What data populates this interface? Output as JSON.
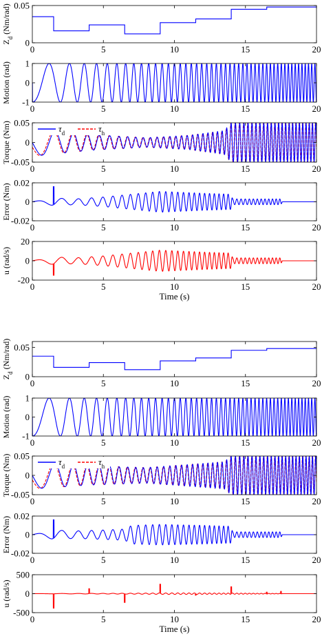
{
  "colors": {
    "blue": "#0000ff",
    "red": "#ff0000",
    "axis": "#000000"
  },
  "chart_data": [
    {
      "type": "line",
      "group": 1,
      "panel": "Zd",
      "ylabel": "Z",
      "ylabel_sub": "d",
      "ylabel_tail": " (Nm/rad)",
      "xlim": [
        0,
        20
      ],
      "ylim": [
        0,
        0.05
      ],
      "xticks": [
        "0",
        "5",
        "10",
        "15",
        "20"
      ],
      "yticks": [
        {
          "v": 0,
          "t": "0"
        },
        {
          "v": 0.05,
          "t": "0.05"
        }
      ],
      "series": [
        {
          "color": "blue",
          "kind": "step",
          "x": [
            0,
            1.5,
            4,
            6.5,
            9,
            11.5,
            14,
            16.5,
            20
          ],
          "y": [
            0.035,
            0.016,
            0.024,
            0.012,
            0.027,
            0.032,
            0.045,
            0.048,
            0.048
          ]
        }
      ]
    },
    {
      "type": "line",
      "group": 1,
      "panel": "Motion",
      "ylabel": "Motion (rad)",
      "xlim": [
        0,
        20
      ],
      "ylim": [
        -1,
        1
      ],
      "xticks": [
        "0",
        "5",
        "10",
        "15",
        "20"
      ],
      "yticks": [
        {
          "v": 1,
          "t": "1"
        },
        {
          "v": 0,
          "t": "0"
        },
        {
          "v": -1,
          "t": "-1"
        }
      ],
      "series": [
        {
          "color": "blue",
          "kind": "chirp",
          "amplitude": 1,
          "f0_hz": 0.3,
          "f1_hz": 4.5
        }
      ]
    },
    {
      "type": "line",
      "group": 1,
      "panel": "Torque",
      "ylabel": "Torque (Nm)",
      "xlim": [
        0,
        20
      ],
      "ylim": [
        -0.05,
        0.05
      ],
      "xticks": [
        "0",
        "5",
        "10",
        "15",
        "20"
      ],
      "yticks": [
        {
          "v": 0.05,
          "t": "0.05"
        },
        {
          "v": 0,
          "t": "0"
        },
        {
          "v": -0.05,
          "t": "-0.05"
        }
      ],
      "legend": {
        "placement": "top-left",
        "entries": [
          {
            "sym": "τ",
            "sub": "d",
            "color": "blue",
            "dash": false
          },
          {
            "sym": "τ",
            "sub": "h",
            "color": "red",
            "dash": true
          }
        ]
      },
      "series": [
        {
          "color": "red",
          "kind": "torque",
          "dashed": true,
          "envelope": [
            [
              0,
              0.035
            ],
            [
              4,
              0.02
            ],
            [
              8,
              0.012
            ],
            [
              11,
              0.018
            ],
            [
              13.5,
              0.03
            ],
            [
              14,
              0.05
            ],
            [
              20,
              0.05
            ]
          ]
        },
        {
          "color": "blue",
          "kind": "torque",
          "dashed": false,
          "envelope": [
            [
              0,
              0.035
            ],
            [
              4,
              0.02
            ],
            [
              8,
              0.012
            ],
            [
              11,
              0.018
            ],
            [
              13.5,
              0.03
            ],
            [
              14,
              0.05
            ],
            [
              20,
              0.05
            ]
          ]
        }
      ]
    },
    {
      "type": "line",
      "group": 1,
      "panel": "Error",
      "ylabel": "Error (Nm)",
      "xlim": [
        0,
        20
      ],
      "ylim": [
        -0.02,
        0.02
      ],
      "xticks": [
        "0",
        "5",
        "10",
        "15",
        "20"
      ],
      "yticks": [
        {
          "v": 0.02,
          "t": "0.02"
        },
        {
          "v": 0,
          "t": "0"
        },
        {
          "v": -0.02,
          "t": "-0.02"
        }
      ],
      "series": [
        {
          "color": "blue",
          "kind": "error",
          "spike": 0.016,
          "spike_x": 1.5,
          "envelope": [
            [
              0,
              0
            ],
            [
              1.5,
              0.004
            ],
            [
              3,
              0.003
            ],
            [
              5,
              0.005
            ],
            [
              7,
              0.008
            ],
            [
              9,
              0.011
            ],
            [
              12,
              0.009
            ],
            [
              14,
              0.008
            ],
            [
              14.1,
              0.003
            ],
            [
              17.5,
              0.003
            ],
            [
              17.6,
              0
            ],
            [
              20,
              0
            ]
          ]
        }
      ]
    },
    {
      "type": "line",
      "group": 1,
      "panel": "u",
      "ylabel": "u (rad/s)",
      "xlabel": "Time (s)",
      "xlim": [
        0,
        20
      ],
      "ylim": [
        -20,
        20
      ],
      "xticks": [
        "0",
        "5",
        "10",
        "15",
        "20"
      ],
      "yticks": [
        {
          "v": 20,
          "t": "20"
        },
        {
          "v": 0,
          "t": "0"
        },
        {
          "v": -20,
          "t": "-20"
        }
      ],
      "series": [
        {
          "color": "red",
          "kind": "error",
          "spike": -15,
          "spike_x": 1.5,
          "envelope": [
            [
              0,
              0
            ],
            [
              1.5,
              4
            ],
            [
              3,
              3
            ],
            [
              5,
              5
            ],
            [
              7,
              8
            ],
            [
              9,
              11
            ],
            [
              12,
              9
            ],
            [
              13.9,
              8
            ],
            [
              14,
              8
            ],
            [
              14.1,
              3
            ],
            [
              17.5,
              3
            ],
            [
              17.6,
              0
            ],
            [
              20,
              0
            ]
          ]
        }
      ]
    },
    {
      "type": "line",
      "group": 2,
      "panel": "Zd",
      "ylabel": "Z",
      "ylabel_sub": "d",
      "ylabel_tail": " (Nm/rad)",
      "xlim": [
        0,
        20
      ],
      "ylim": [
        0,
        0.06
      ],
      "xticks": [
        "0",
        "5",
        "10",
        "15",
        "20"
      ],
      "yticks": [
        {
          "v": 0,
          "t": "0"
        },
        {
          "v": 0.05,
          "t": "0.05"
        }
      ],
      "series": [
        {
          "color": "blue",
          "kind": "step",
          "x": [
            0,
            1.5,
            4,
            6.5,
            9,
            11.5,
            14,
            16.5,
            20
          ],
          "y": [
            0.035,
            0.016,
            0.024,
            0.012,
            0.027,
            0.032,
            0.045,
            0.048,
            0.048
          ]
        }
      ]
    },
    {
      "type": "line",
      "group": 2,
      "panel": "Motion",
      "ylabel": "Motion (rad)",
      "xlim": [
        0,
        20
      ],
      "ylim": [
        -1,
        1
      ],
      "xticks": [
        "0",
        "5",
        "10",
        "15",
        "20"
      ],
      "yticks": [
        {
          "v": 1,
          "t": "1"
        },
        {
          "v": 0,
          "t": "0"
        },
        {
          "v": -1,
          "t": "-1"
        }
      ],
      "series": [
        {
          "color": "blue",
          "kind": "chirp",
          "amplitude": 1,
          "f0_hz": 0.3,
          "f1_hz": 4.5
        }
      ]
    },
    {
      "type": "line",
      "group": 2,
      "panel": "Torque",
      "ylabel": "Torque (Nm)",
      "xlim": [
        0,
        20
      ],
      "ylim": [
        -0.05,
        0.05
      ],
      "xticks": [
        "0",
        "5",
        "10",
        "15",
        "20"
      ],
      "yticks": [
        {
          "v": 0.05,
          "t": "0.05"
        },
        {
          "v": 0,
          "t": "0"
        },
        {
          "v": -0.05,
          "t": "-0.05"
        }
      ],
      "legend": {
        "placement": "top-left",
        "entries": [
          {
            "sym": "τ",
            "sub": "d",
            "color": "blue",
            "dash": false
          },
          {
            "sym": "τ",
            "sub": "h",
            "color": "red",
            "dash": true
          }
        ]
      },
      "series": [
        {
          "color": "red",
          "kind": "torque",
          "dashed": true,
          "envelope": [
            [
              0,
              0.035
            ],
            [
              4,
              0.025
            ],
            [
              8,
              0.02
            ],
            [
              11,
              0.028
            ],
            [
              13.5,
              0.035
            ],
            [
              14,
              0.05
            ],
            [
              20,
              0.05
            ]
          ]
        },
        {
          "color": "blue",
          "kind": "torque",
          "dashed": false,
          "envelope": [
            [
              0,
              0.035
            ],
            [
              4,
              0.025
            ],
            [
              8,
              0.02
            ],
            [
              11,
              0.028
            ],
            [
              13.5,
              0.035
            ],
            [
              14,
              0.05
            ],
            [
              20,
              0.05
            ]
          ]
        }
      ]
    },
    {
      "type": "line",
      "group": 2,
      "panel": "Error",
      "ylabel": "Error (Nm)",
      "xlim": [
        0,
        20
      ],
      "ylim": [
        -0.02,
        0.02
      ],
      "xticks": [
        "0",
        "5",
        "10",
        "15",
        "20"
      ],
      "yticks": [
        {
          "v": 0.02,
          "t": "0.02"
        },
        {
          "v": 0,
          "t": "0"
        },
        {
          "v": -0.02,
          "t": "-0.02"
        }
      ],
      "series": [
        {
          "color": "blue",
          "kind": "error",
          "spike": 0.016,
          "spike_x": 1.5,
          "envelope": [
            [
              0,
              0
            ],
            [
              1.5,
              0.005
            ],
            [
              3,
              0.004
            ],
            [
              5,
              0.005
            ],
            [
              6.5,
              0.006
            ],
            [
              7,
              0.01
            ],
            [
              9,
              0.011
            ],
            [
              12,
              0.01
            ],
            [
              14,
              0.009
            ],
            [
              14.1,
              0.003
            ],
            [
              17.5,
              0.003
            ],
            [
              17.6,
              0
            ],
            [
              20,
              0
            ]
          ]
        }
      ]
    },
    {
      "type": "line",
      "group": 2,
      "panel": "u",
      "ylabel": "u (rad/s)",
      "xlabel": "Time (s)",
      "xlim": [
        0,
        20
      ],
      "ylim": [
        -500,
        500
      ],
      "xticks": [
        "0",
        "5",
        "10",
        "15",
        "20"
      ],
      "yticks": [
        {
          "v": 500,
          "t": "500"
        },
        {
          "v": 0,
          "t": "0"
        },
        {
          "v": -500,
          "t": "-500"
        }
      ],
      "series": [
        {
          "color": "red",
          "kind": "spikes",
          "spikes": [
            [
              1.5,
              -380
            ],
            [
              4,
              130
            ],
            [
              6.5,
              -230
            ],
            [
              9,
              250
            ],
            [
              11.5,
              -40
            ],
            [
              14,
              180
            ],
            [
              16.5,
              40
            ],
            [
              17.5,
              60
            ]
          ],
          "envelope": [
            [
              0,
              0
            ],
            [
              2,
              5
            ],
            [
              6,
              10
            ],
            [
              10,
              20
            ],
            [
              14,
              15
            ],
            [
              17.5,
              5
            ],
            [
              17.6,
              0
            ],
            [
              20,
              0
            ]
          ]
        }
      ]
    }
  ]
}
